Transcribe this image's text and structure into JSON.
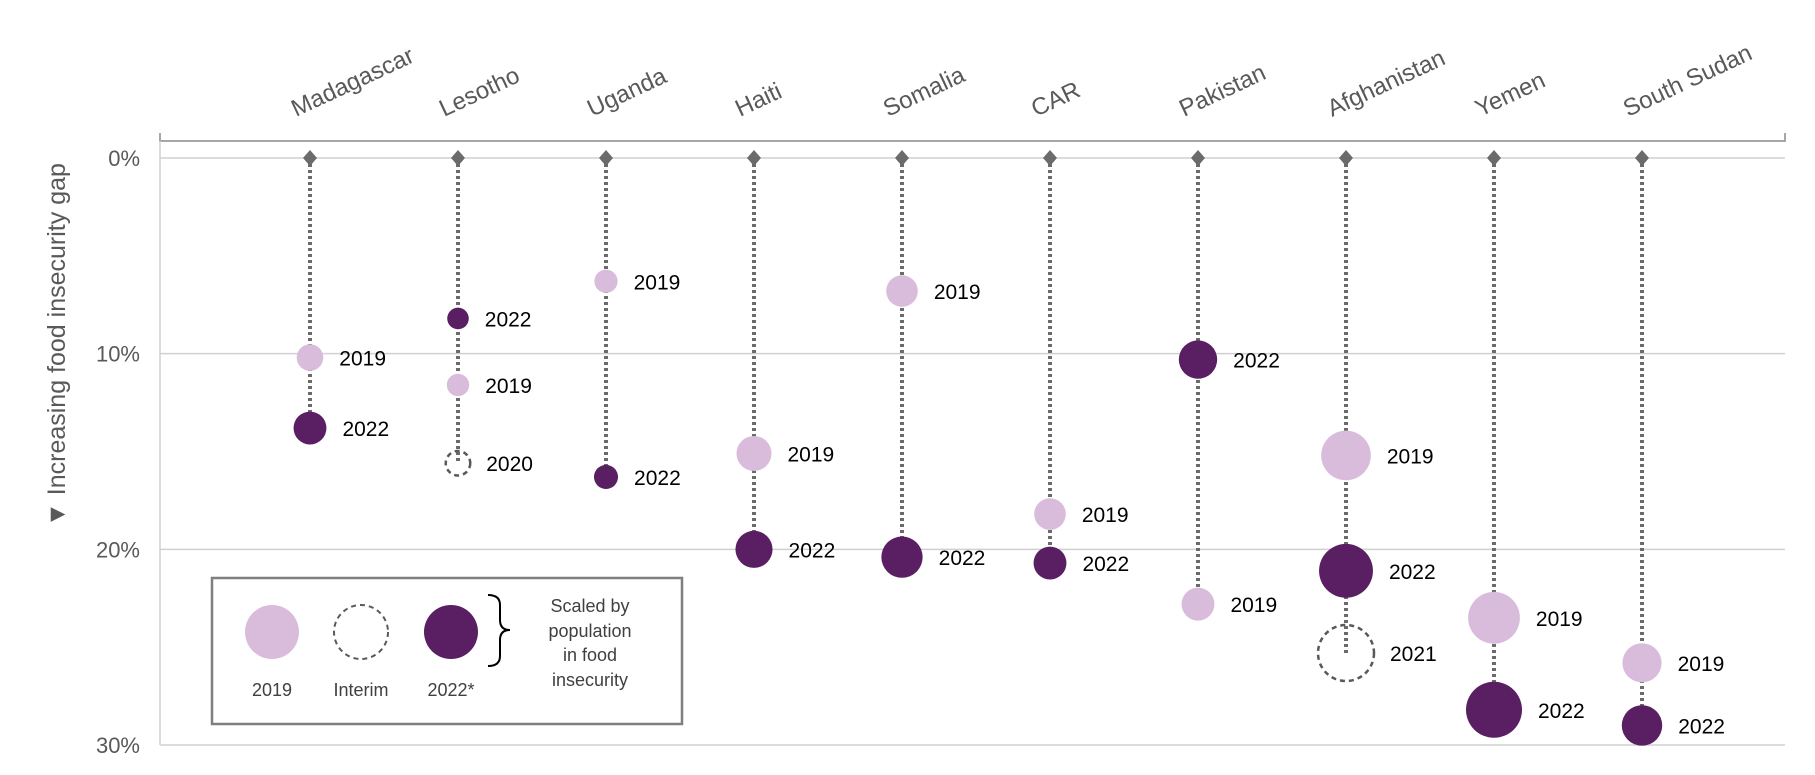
{
  "chart_data": {
    "type": "dot-range",
    "ylabel": "▼ Increasing food insecurity gap",
    "ylim": [
      0,
      30
    ],
    "y_ticks": [
      0,
      10,
      20,
      30
    ],
    "y_tick_labels": [
      "0%",
      "10%",
      "20%",
      "30%"
    ],
    "y_inverted": true,
    "grid": true,
    "categories": [
      "Madagascar",
      "Lesotho",
      "Uganda",
      "Haiti",
      "Somalia",
      "CAR",
      "Pakistan",
      "Afghanistan",
      "Yemen",
      "South Sudan"
    ],
    "points": [
      {
        "country": "Madagascar",
        "year": "2019",
        "value": 10.2,
        "kind": "2019",
        "size": 0.3
      },
      {
        "country": "Madagascar",
        "year": "2022",
        "value": 13.8,
        "kind": "2022",
        "size": 0.45
      },
      {
        "country": "Lesotho",
        "year": "2022",
        "value": 8.2,
        "kind": "2022",
        "size": 0.18
      },
      {
        "country": "Lesotho",
        "year": "2019",
        "value": 11.6,
        "kind": "2019",
        "size": 0.2
      },
      {
        "country": "Lesotho",
        "year": "2020",
        "value": 15.6,
        "kind": "interim",
        "size": 0.25
      },
      {
        "country": "Uganda",
        "year": "2019",
        "value": 6.3,
        "kind": "2019",
        "size": 0.22
      },
      {
        "country": "Uganda",
        "year": "2022",
        "value": 16.3,
        "kind": "2022",
        "size": 0.24
      },
      {
        "country": "Haiti",
        "year": "2019",
        "value": 15.1,
        "kind": "2019",
        "size": 0.5
      },
      {
        "country": "Haiti",
        "year": "2022",
        "value": 20.0,
        "kind": "2022",
        "size": 0.55
      },
      {
        "country": "Somalia",
        "year": "2019",
        "value": 6.8,
        "kind": "2019",
        "size": 0.42
      },
      {
        "country": "Somalia",
        "year": "2022",
        "value": 20.4,
        "kind": "2022",
        "size": 0.65
      },
      {
        "country": "CAR",
        "year": "2019",
        "value": 18.2,
        "kind": "2019",
        "size": 0.42
      },
      {
        "country": "CAR",
        "year": "2022",
        "value": 20.7,
        "kind": "2022",
        "size": 0.45
      },
      {
        "country": "Pakistan",
        "year": "2022",
        "value": 10.3,
        "kind": "2022",
        "size": 0.58
      },
      {
        "country": "Pakistan",
        "year": "2019",
        "value": 22.8,
        "kind": "2019",
        "size": 0.45
      },
      {
        "country": "Afghanistan",
        "year": "2019",
        "value": 15.2,
        "kind": "2019",
        "size": 0.85
      },
      {
        "country": "Afghanistan",
        "year": "2022",
        "value": 21.1,
        "kind": "2022",
        "size": 0.95
      },
      {
        "country": "Afghanistan",
        "year": "2021",
        "value": 25.3,
        "kind": "interim",
        "size": 1.0
      },
      {
        "country": "Yemen",
        "year": "2019",
        "value": 23.5,
        "kind": "2019",
        "size": 0.9
      },
      {
        "country": "Yemen",
        "year": "2022",
        "value": 28.2,
        "kind": "2022",
        "size": 1.0
      },
      {
        "country": "South Sudan",
        "year": "2019",
        "value": 25.8,
        "kind": "2019",
        "size": 0.6
      },
      {
        "country": "South Sudan",
        "year": "2022",
        "value": 29.0,
        "kind": "2022",
        "size": 0.63
      }
    ],
    "legend": {
      "items": [
        {
          "label": "2019",
          "kind": "2019"
        },
        {
          "label": "Interim",
          "kind": "interim"
        },
        {
          "label": "2022*",
          "kind": "2022"
        }
      ],
      "note_lines": [
        "Scaled by",
        "population",
        "in food",
        "insecurity"
      ],
      "placement": "bottom-left"
    },
    "colors": {
      "2019": "#d9bcdb",
      "2022": "#5a1e63",
      "interim": "#595959",
      "stem": "#6b6b6b",
      "grid": "#d0d0d0",
      "axis": "#a6a6a6"
    }
  }
}
